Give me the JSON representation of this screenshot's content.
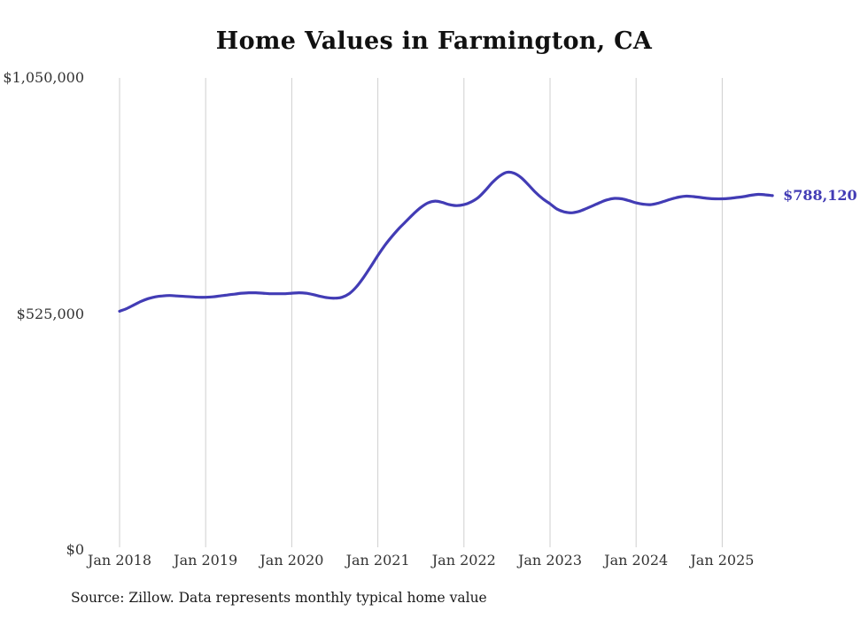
{
  "page": {
    "title": "Home Values in Farmington, CA",
    "source_note": "Source: Zillow. Data represents monthly typical home value"
  },
  "chart_data": {
    "type": "line",
    "title": "Home Values in Farmington, CA",
    "series_name": "Monthly typical home value (USD)",
    "legend": "none",
    "grid": "vertical-only",
    "ylim": [
      0,
      1050000
    ],
    "line_color": "#423cb5",
    "grid_color": "#cfcfcf",
    "end_label": "$788,120",
    "latest_value": 788120,
    "y_ticks": [
      {
        "value": 0,
        "label": "$0"
      },
      {
        "value": 525000,
        "label": "$525,000"
      },
      {
        "value": 1050000,
        "label": "$1,050,000"
      }
    ],
    "x_ticks": [
      {
        "month": 0,
        "label": "Jan 2018"
      },
      {
        "month": 12,
        "label": "Jan 2019"
      },
      {
        "month": 24,
        "label": "Jan 2020"
      },
      {
        "month": 36,
        "label": "Jan 2021"
      },
      {
        "month": 48,
        "label": "Jan 2022"
      },
      {
        "month": 60,
        "label": "Jan 2023"
      },
      {
        "month": 72,
        "label": "Jan 2024"
      },
      {
        "month": 84,
        "label": "Jan 2025"
      }
    ],
    "x": [
      "2018-01",
      "2018-02",
      "2018-03",
      "2018-04",
      "2018-05",
      "2018-06",
      "2018-07",
      "2018-08",
      "2018-09",
      "2018-10",
      "2018-11",
      "2018-12",
      "2019-01",
      "2019-02",
      "2019-03",
      "2019-04",
      "2019-05",
      "2019-06",
      "2019-07",
      "2019-08",
      "2019-09",
      "2019-10",
      "2019-11",
      "2019-12",
      "2020-01",
      "2020-02",
      "2020-03",
      "2020-04",
      "2020-05",
      "2020-06",
      "2020-07",
      "2020-08",
      "2020-09",
      "2020-10",
      "2020-11",
      "2020-12",
      "2021-01",
      "2021-02",
      "2021-03",
      "2021-04",
      "2021-05",
      "2021-06",
      "2021-07",
      "2021-08",
      "2021-09",
      "2021-10",
      "2021-11",
      "2021-12",
      "2022-01",
      "2022-02",
      "2022-03",
      "2022-04",
      "2022-05",
      "2022-06",
      "2022-07",
      "2022-08",
      "2022-09",
      "2022-10",
      "2022-11",
      "2022-12",
      "2023-01",
      "2023-02",
      "2023-03",
      "2023-04",
      "2023-05",
      "2023-06",
      "2023-07",
      "2023-08",
      "2023-09",
      "2023-10",
      "2023-11",
      "2023-12",
      "2024-01",
      "2024-02",
      "2024-03",
      "2024-04",
      "2024-05",
      "2024-06",
      "2024-07",
      "2024-08",
      "2024-09",
      "2024-10",
      "2024-11",
      "2024-12",
      "2025-01",
      "2025-02",
      "2025-03",
      "2025-04",
      "2025-05",
      "2025-06",
      "2025-07",
      "2025-08"
    ],
    "values": [
      531000,
      537000,
      545000,
      553000,
      559000,
      563000,
      565000,
      566000,
      565000,
      564000,
      563000,
      562000,
      562000,
      563000,
      565000,
      567000,
      569000,
      571000,
      572000,
      572000,
      571000,
      570000,
      570000,
      570000,
      571000,
      572000,
      571000,
      568000,
      564000,
      561000,
      560000,
      562000,
      570000,
      585000,
      606000,
      630000,
      655000,
      678000,
      698000,
      716000,
      732000,
      748000,
      762000,
      772000,
      776000,
      773000,
      768000,
      766000,
      768000,
      774000,
      784000,
      800000,
      818000,
      832000,
      840000,
      838000,
      828000,
      812000,
      795000,
      781000,
      770000,
      758000,
      752000,
      750000,
      753000,
      759000,
      766000,
      773000,
      779000,
      782000,
      781000,
      777000,
      772000,
      769000,
      768000,
      771000,
      776000,
      781000,
      785000,
      787000,
      786000,
      784000,
      782000,
      781000,
      781000,
      782000,
      784000,
      786000,
      789000,
      791000,
      790000,
      788120
    ]
  }
}
